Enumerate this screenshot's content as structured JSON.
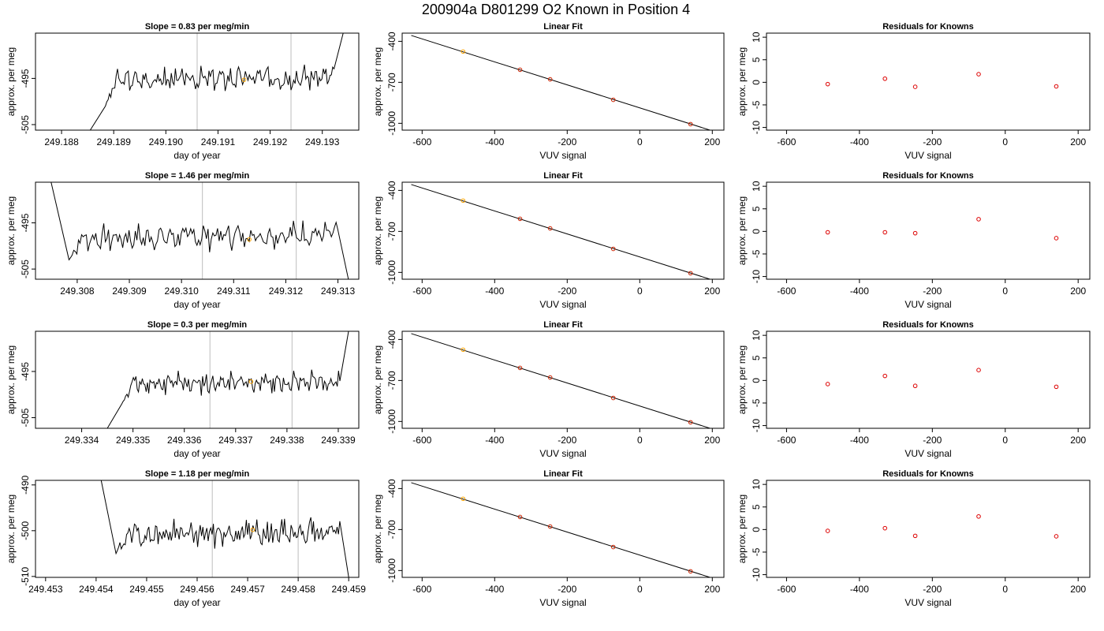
{
  "figure": {
    "title": "200904a      D801299   O2 Known in Position  4"
  },
  "chart_data": [
    {
      "type": "line",
      "panel": "timeseries",
      "title": "Slope =  0.83  per meg/min",
      "xlabel": "day of year",
      "ylabel": "approx. per meg",
      "xlim": [
        249.1875,
        249.1937
      ],
      "ylim": [
        -506.2,
        -485.2
      ],
      "x_ticks": [
        249.188,
        249.189,
        249.19,
        249.191,
        249.192,
        249.193
      ],
      "x_tick_labels": [
        "249.188",
        "249.189",
        "249.190",
        "249.191",
        "249.192",
        "249.193"
      ],
      "y_ticks": [
        -495,
        -505
      ],
      "y_tick_labels": [
        "-495",
        "-505"
      ],
      "vlines": [
        249.1906,
        249.1924
      ],
      "highlight_point": {
        "x": 249.1915,
        "y": -495.3
      },
      "trace": {
        "start": 249.18855,
        "end": 249.1934,
        "base": -495.5,
        "slope": 0.3,
        "amplitude": 1.0,
        "seed": 3,
        "left_tail": [
          249.18855,
          -506.2
        ],
        "right_tail": [
          249.1934,
          -485.2
        ],
        "settle_from": -501.0
      }
    },
    {
      "type": "scatter",
      "panel": "linear-fit",
      "title": "Linear Fit",
      "xlabel": "VUV signal",
      "ylabel": "approx. per meg",
      "xlim": [
        -655,
        232
      ],
      "ylim": [
        -1050,
        -340
      ],
      "x_ticks": [
        -600,
        -400,
        -200,
        0,
        200
      ],
      "x_tick_labels": [
        "-600",
        "-400",
        "-200",
        "0",
        "200"
      ],
      "y_ticks": [
        -400,
        -700,
        -1000
      ],
      "y_tick_labels": [
        "-400",
        "-700",
        "-1000"
      ],
      "points": [
        {
          "x": -487,
          "y": -475
        },
        {
          "x": -330,
          "y": -608
        },
        {
          "x": -247,
          "y": -678
        },
        {
          "x": -73,
          "y": -828
        },
        {
          "x": 140,
          "y": -1006
        }
      ],
      "known_index": 0,
      "fit_line": {
        "x": [
          -630,
          220
        ],
        "y": [
          -357,
          -1072
        ]
      }
    },
    {
      "type": "scatter",
      "panel": "residuals",
      "title": "Residuals for Knowns",
      "xlabel": "VUV signal",
      "ylabel": "approx. per meg",
      "xlim": [
        -655,
        232
      ],
      "ylim": [
        -10.6,
        10.9
      ],
      "x_ticks": [
        -600,
        -400,
        -200,
        0,
        200
      ],
      "x_tick_labels": [
        "-600",
        "-400",
        "-200",
        "0",
        "200"
      ],
      "y_ticks": [
        10,
        5,
        0,
        -5,
        -10
      ],
      "y_tick_labels": [
        "10",
        "5",
        "0",
        "-5",
        "-10"
      ],
      "points": [
        {
          "x": -487,
          "y": -0.4
        },
        {
          "x": -330,
          "y": 0.8
        },
        {
          "x": -247,
          "y": -1.0
        },
        {
          "x": -73,
          "y": 1.8
        },
        {
          "x": 140,
          "y": -0.9
        }
      ]
    },
    {
      "type": "line",
      "panel": "timeseries",
      "title": "Slope =  1.46  per meg/min",
      "xlabel": "day of year",
      "ylabel": "approx. per meg",
      "xlim": [
        249.3072,
        249.3134
      ],
      "ylim": [
        -507.2,
        -486.2
      ],
      "x_ticks": [
        249.308,
        249.309,
        249.31,
        249.311,
        249.312,
        249.313
      ],
      "x_tick_labels": [
        "249.308",
        "249.309",
        "249.310",
        "249.311",
        "249.312",
        "249.313"
      ],
      "y_ticks": [
        -495,
        -505
      ],
      "y_tick_labels": [
        "-495",
        "-505"
      ],
      "vlines": [
        249.3104,
        249.3122
      ],
      "highlight_point": {
        "x": 249.3113,
        "y": -498.6
      },
      "trace": {
        "start": 249.3075,
        "end": 249.3132,
        "base": -498.5,
        "slope": 0.4,
        "amplitude": 1.1,
        "seed": 7,
        "left_tail": [
          249.3075,
          -486.2
        ],
        "right_tail": [
          249.3132,
          -507.2
        ],
        "settle_from": -503.0
      }
    },
    {
      "type": "scatter",
      "panel": "linear-fit",
      "title": "Linear Fit",
      "xlabel": "VUV signal",
      "ylabel": "approx. per meg",
      "xlim": [
        -655,
        232
      ],
      "ylim": [
        -1050,
        -340
      ],
      "x_ticks": [
        -600,
        -400,
        -200,
        0,
        200
      ],
      "x_tick_labels": [
        "-600",
        "-400",
        "-200",
        "0",
        "200"
      ],
      "y_ticks": [
        -400,
        -700,
        -1000
      ],
      "y_tick_labels": [
        "-400",
        "-700",
        "-1000"
      ],
      "points": [
        {
          "x": -487,
          "y": -475
        },
        {
          "x": -330,
          "y": -608
        },
        {
          "x": -247,
          "y": -678
        },
        {
          "x": -73,
          "y": -828
        },
        {
          "x": 140,
          "y": -1006
        }
      ],
      "known_index": 0,
      "fit_line": {
        "x": [
          -630,
          220
        ],
        "y": [
          -357,
          -1072
        ]
      }
    },
    {
      "type": "scatter",
      "panel": "residuals",
      "title": "Residuals for Knowns",
      "xlabel": "VUV signal",
      "ylabel": "approx. per meg",
      "xlim": [
        -655,
        232
      ],
      "ylim": [
        -10.6,
        10.9
      ],
      "x_ticks": [
        -600,
        -400,
        -200,
        0,
        200
      ],
      "x_tick_labels": [
        "-600",
        "-400",
        "-200",
        "0",
        "200"
      ],
      "y_ticks": [
        10,
        5,
        0,
        -5,
        -10
      ],
      "y_tick_labels": [
        "10",
        "5",
        "0",
        "-5",
        "-10"
      ],
      "points": [
        {
          "x": -487,
          "y": -0.2
        },
        {
          "x": -330,
          "y": -0.2
        },
        {
          "x": -247,
          "y": -0.4
        },
        {
          "x": -73,
          "y": 2.7
        },
        {
          "x": 140,
          "y": -1.5
        }
      ]
    },
    {
      "type": "line",
      "panel": "timeseries",
      "title": "Slope =  0.3  per meg/min",
      "xlabel": "day of year",
      "ylabel": "approx. per meg",
      "xlim": [
        249.3331,
        249.3394
      ],
      "ylim": [
        -507.3,
        -486.3
      ],
      "x_ticks": [
        249.334,
        249.335,
        249.336,
        249.337,
        249.338,
        249.339
      ],
      "x_tick_labels": [
        "249.334",
        "249.335",
        "249.336",
        "249.337",
        "249.338",
        "249.339"
      ],
      "y_ticks": [
        -495,
        -505
      ],
      "y_tick_labels": [
        "-495",
        "-505"
      ],
      "vlines": [
        249.3365,
        249.3381
      ],
      "highlight_point": {
        "x": 249.3373,
        "y": -497.2
      },
      "trace": {
        "start": 249.3345,
        "end": 249.3392,
        "base": -497.8,
        "slope": 0.2,
        "amplitude": 1.0,
        "seed": 11,
        "left_tail": [
          249.3345,
          -507.3
        ],
        "right_tail": [
          249.3392,
          -486.3
        ],
        "settle_from": -502.0
      }
    },
    {
      "type": "scatter",
      "panel": "linear-fit",
      "title": "Linear Fit",
      "xlabel": "VUV signal",
      "ylabel": "approx. per meg",
      "xlim": [
        -655,
        232
      ],
      "ylim": [
        -1050,
        -340
      ],
      "x_ticks": [
        -600,
        -400,
        -200,
        0,
        200
      ],
      "x_tick_labels": [
        "-600",
        "-400",
        "-200",
        "0",
        "200"
      ],
      "y_ticks": [
        -400,
        -700,
        -1000
      ],
      "y_tick_labels": [
        "-400",
        "-700",
        "-1000"
      ],
      "points": [
        {
          "x": -487,
          "y": -475
        },
        {
          "x": -330,
          "y": -608
        },
        {
          "x": -247,
          "y": -678
        },
        {
          "x": -73,
          "y": -828
        },
        {
          "x": 140,
          "y": -1006
        }
      ],
      "known_index": 0,
      "fit_line": {
        "x": [
          -630,
          220
        ],
        "y": [
          -357,
          -1072
        ]
      }
    },
    {
      "type": "scatter",
      "panel": "residuals",
      "title": "Residuals for Knowns",
      "xlabel": "VUV signal",
      "ylabel": "approx. per meg",
      "xlim": [
        -655,
        232
      ],
      "ylim": [
        -10.6,
        10.9
      ],
      "x_ticks": [
        -600,
        -400,
        -200,
        0,
        200
      ],
      "x_tick_labels": [
        "-600",
        "-400",
        "-200",
        "0",
        "200"
      ],
      "y_ticks": [
        10,
        5,
        0,
        -5,
        -10
      ],
      "y_tick_labels": [
        "10",
        "5",
        "0",
        "-5",
        "-10"
      ],
      "points": [
        {
          "x": -487,
          "y": -0.8
        },
        {
          "x": -330,
          "y": 1.0
        },
        {
          "x": -247,
          "y": -1.2
        },
        {
          "x": -73,
          "y": 2.3
        },
        {
          "x": 140,
          "y": -1.4
        }
      ]
    },
    {
      "type": "line",
      "panel": "timeseries",
      "title": "Slope =  1.18  per meg/min",
      "xlabel": "day of year",
      "ylabel": "approx. per meg",
      "xlim": [
        249.4528,
        249.4592
      ],
      "ylim": [
        -510.2,
        -489.0
      ],
      "x_ticks": [
        249.453,
        249.454,
        249.455,
        249.456,
        249.457,
        249.458,
        249.459
      ],
      "x_tick_labels": [
        "249.453",
        "249.454",
        "249.455",
        "249.456",
        "249.457",
        "249.458",
        "249.459"
      ],
      "y_ticks": [
        -490,
        -500,
        -510
      ],
      "y_tick_labels": [
        "-490",
        "-500",
        "-510"
      ],
      "vlines": [
        249.4563,
        249.458
      ],
      "highlight_point": {
        "x": 249.4571,
        "y": -499.8
      },
      "trace": {
        "start": 249.4541,
        "end": 249.459,
        "base": -501.0,
        "slope": 0.3,
        "amplitude": 1.2,
        "seed": 19,
        "left_tail": [
          249.4541,
          -489.0
        ],
        "right_tail": [
          249.459,
          -510.2
        ],
        "settle_from": -505.0
      }
    },
    {
      "type": "scatter",
      "panel": "linear-fit",
      "title": "Linear Fit",
      "xlabel": "VUV signal",
      "ylabel": "approx. per meg",
      "xlim": [
        -655,
        232
      ],
      "ylim": [
        -1050,
        -340
      ],
      "x_ticks": [
        -600,
        -400,
        -200,
        0,
        200
      ],
      "x_tick_labels": [
        "-600",
        "-400",
        "-200",
        "0",
        "200"
      ],
      "y_ticks": [
        -400,
        -700,
        -1000
      ],
      "y_tick_labels": [
        "-400",
        "-700",
        "-1000"
      ],
      "points": [
        {
          "x": -487,
          "y": -475
        },
        {
          "x": -330,
          "y": -608
        },
        {
          "x": -247,
          "y": -678
        },
        {
          "x": -73,
          "y": -828
        },
        {
          "x": 140,
          "y": -1006
        }
      ],
      "known_index": 0,
      "fit_line": {
        "x": [
          -630,
          220
        ],
        "y": [
          -357,
          -1072
        ]
      }
    },
    {
      "type": "scatter",
      "panel": "residuals",
      "title": "Residuals for Knowns",
      "xlabel": "VUV signal",
      "ylabel": "approx. per meg",
      "xlim": [
        -655,
        232
      ],
      "ylim": [
        -10.6,
        10.9
      ],
      "x_ticks": [
        -600,
        -400,
        -200,
        0,
        200
      ],
      "x_tick_labels": [
        "-600",
        "-400",
        "-200",
        "0",
        "200"
      ],
      "y_ticks": [
        10,
        5,
        0,
        -5,
        -10
      ],
      "y_tick_labels": [
        "10",
        "5",
        "0",
        "-5",
        "-10"
      ],
      "points": [
        {
          "x": -487,
          "y": -0.3
        },
        {
          "x": -330,
          "y": 0.3
        },
        {
          "x": -247,
          "y": -1.4
        },
        {
          "x": -73,
          "y": 2.9
        },
        {
          "x": 140,
          "y": -1.5
        }
      ]
    }
  ],
  "colors": {
    "trace": "#000000",
    "vline": "#c8c8c8",
    "known_point": "#ffa500",
    "residual_point": "#dd0000",
    "fit_point": "#cc2200",
    "frame": "#000000"
  }
}
